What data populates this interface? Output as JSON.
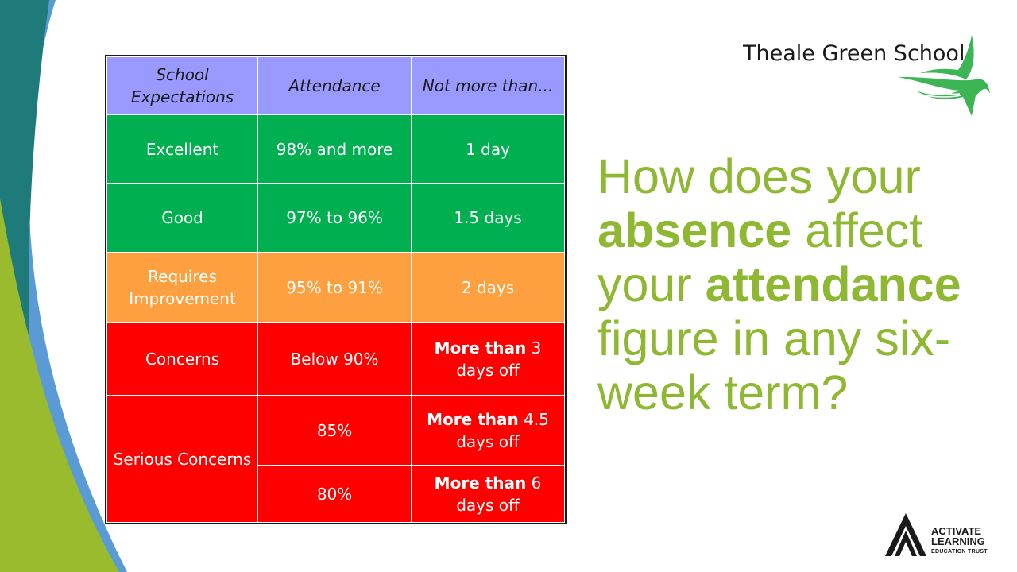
{
  "school_logo": {
    "name": "Theale Green School",
    "bird_icon": "swallow-icon"
  },
  "table": {
    "headers": [
      "School Expectations",
      "Attendance",
      "Not more than..."
    ],
    "rows": [
      {
        "category": "Excellent",
        "attendance": "98% and more",
        "limit": "1 day",
        "color": "#00b050"
      },
      {
        "category": "Good",
        "attendance": "97% to 96%",
        "limit": "1.5 days",
        "color": "#00b050"
      },
      {
        "category": "Requires Improvement",
        "attendance": "95% to 91%",
        "limit": "2 days",
        "color": "#ffa040"
      },
      {
        "category": "Concerns",
        "attendance": "Below 90%",
        "limit_bold": "More than",
        "limit_rest": "3 days off",
        "color": "#ff0000"
      },
      {
        "category": "Serious Concerns",
        "attendance": "85%",
        "limit_bold": "More than",
        "limit_rest": "4.5 days off",
        "color": "#ff0000"
      },
      {
        "attendance": "80%",
        "limit_bold": "More than",
        "limit_rest": "6 days off",
        "color": "#ff0000"
      }
    ],
    "header_color": "#9999ff"
  },
  "question": {
    "part1": "How does your",
    "bold1": "absence",
    "part2": "affect your",
    "bold2": "attendance",
    "part3": "figure in any six-week term?",
    "color": "#8fb832"
  },
  "trust_logo": {
    "line1": "ACTIVATE",
    "line2": "LEARNING",
    "line3": "EDUCATION TRUST"
  }
}
